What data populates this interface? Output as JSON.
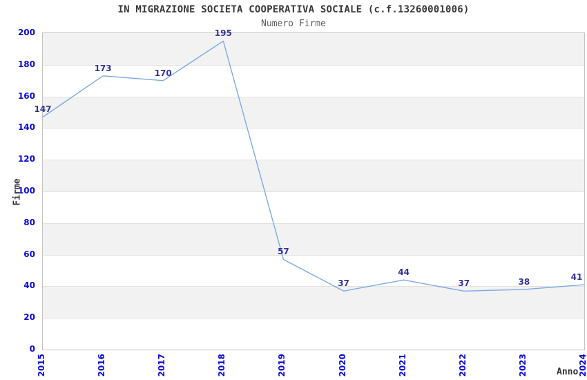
{
  "chart_data": {
    "type": "line",
    "title": "IN MIGRAZIONE SOCIETA COOPERATIVA SOCIALE (c.f.13260001006)",
    "subtitle": "Numero Firme",
    "xlabel": "Anno",
    "ylabel": "Firme",
    "categories": [
      "2015",
      "2016",
      "2017",
      "2018",
      "2019",
      "2020",
      "2021",
      "2022",
      "2023",
      "2024"
    ],
    "values": [
      147,
      173,
      170,
      195,
      57,
      37,
      44,
      37,
      38,
      41
    ],
    "data_labels": [
      "147",
      "173",
      "170",
      "195",
      "57",
      "37",
      "44",
      "37",
      "38",
      "41"
    ],
    "ylim": [
      0,
      200
    ],
    "ytick_step": 20,
    "yticks": [
      0,
      20,
      40,
      60,
      80,
      100,
      120,
      140,
      160,
      180,
      200
    ],
    "legend": "none",
    "grid": "horizontal-bands",
    "colors": {
      "line": "#7aa9e3",
      "tick_label": "#0a0ad8",
      "data_label": "#333399",
      "band_gray": "#f2f2f2",
      "band_white": "#ffffff",
      "gridline": "#e2e2e2",
      "axis_border": "#c3c3c3",
      "title": "#383838",
      "subtitle": "#5a5a5a",
      "axis_name": "#333333"
    }
  }
}
